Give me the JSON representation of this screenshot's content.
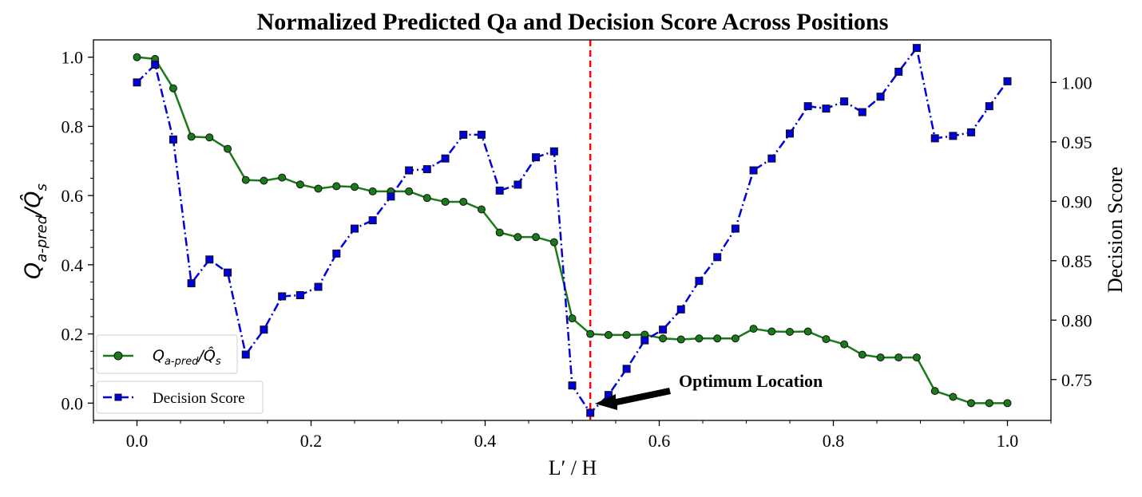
{
  "chart_data": {
    "type": "line",
    "title": "Normalized Predicted Qa and Decision Score Across Positions",
    "xlabel": "L′ / H",
    "ylabel_left": "Q_a-pred / Q̂_s",
    "ylabel_right": "Decision Score",
    "xlim": [
      -0.05,
      1.05
    ],
    "ylim_left": [
      -0.05,
      1.05
    ],
    "ylim_right": [
      0.7156,
      1.0358
    ],
    "x_ticks": [
      "0.0",
      "0.2",
      "0.4",
      "0.6",
      "0.8",
      "1.0"
    ],
    "y_left_ticks": [
      "0.0",
      "0.2",
      "0.4",
      "0.6",
      "0.8",
      "1.0"
    ],
    "y_right_ticks": [
      "0.75",
      "0.80",
      "0.85",
      "0.90",
      "0.95",
      "1.00"
    ],
    "grid": false,
    "legend_placement": "lower-left",
    "x": [
      0.0,
      0.0208,
      0.0417,
      0.0625,
      0.0833,
      0.1042,
      0.125,
      0.1458,
      0.1667,
      0.1875,
      0.2083,
      0.2292,
      0.25,
      0.2708,
      0.2917,
      0.3125,
      0.3333,
      0.3542,
      0.375,
      0.3958,
      0.4167,
      0.4375,
      0.4583,
      0.4792,
      0.5,
      0.5208,
      0.5417,
      0.5625,
      0.5833,
      0.6042,
      0.625,
      0.6458,
      0.6667,
      0.6875,
      0.7083,
      0.7292,
      0.75,
      0.7708,
      0.7917,
      0.8125,
      0.8333,
      0.8542,
      0.875,
      0.8958,
      0.9167,
      0.9375,
      0.9583,
      0.9792,
      1.0
    ],
    "series": [
      {
        "name": "Q_a-pred / Q̂_s",
        "axis": "left",
        "color": "#1a7a1a",
        "marker": "circle",
        "linestyle": "solid",
        "values": [
          1.0,
          0.995,
          0.91,
          0.77,
          0.768,
          0.735,
          0.645,
          0.643,
          0.652,
          0.632,
          0.62,
          0.627,
          0.625,
          0.612,
          0.612,
          0.612,
          0.593,
          0.582,
          0.582,
          0.56,
          0.493,
          0.48,
          0.48,
          0.465,
          0.245,
          0.2,
          0.197,
          0.197,
          0.198,
          0.187,
          0.184,
          0.187,
          0.187,
          0.187,
          0.215,
          0.207,
          0.206,
          0.207,
          0.185,
          0.17,
          0.14,
          0.132,
          0.132,
          0.132,
          0.035,
          0.018,
          0.0,
          0.0,
          0.0
        ]
      },
      {
        "name": "Decision Score",
        "axis": "right",
        "color": "#0000dd",
        "marker": "square",
        "linestyle": "dashdot",
        "values": [
          1.0,
          1.015,
          0.952,
          0.831,
          0.851,
          0.84,
          0.771,
          0.792,
          0.82,
          0.821,
          0.828,
          0.856,
          0.877,
          0.884,
          0.904,
          0.926,
          0.927,
          0.936,
          0.956,
          0.956,
          0.909,
          0.914,
          0.937,
          0.942,
          0.745,
          0.722,
          0.737,
          0.759,
          0.783,
          0.792,
          0.809,
          0.833,
          0.853,
          0.877,
          0.926,
          0.936,
          0.957,
          0.98,
          0.978,
          0.984,
          0.975,
          0.988,
          1.009,
          1.029,
          0.953,
          0.955,
          0.958,
          0.98,
          1.001
        ]
      }
    ],
    "vline": {
      "x": 0.5208,
      "color": "#ff0000",
      "style": "dashed"
    },
    "annotation": {
      "text": "Optimum Location",
      "target_x": 0.5208,
      "target_y_right": 0.722
    }
  }
}
